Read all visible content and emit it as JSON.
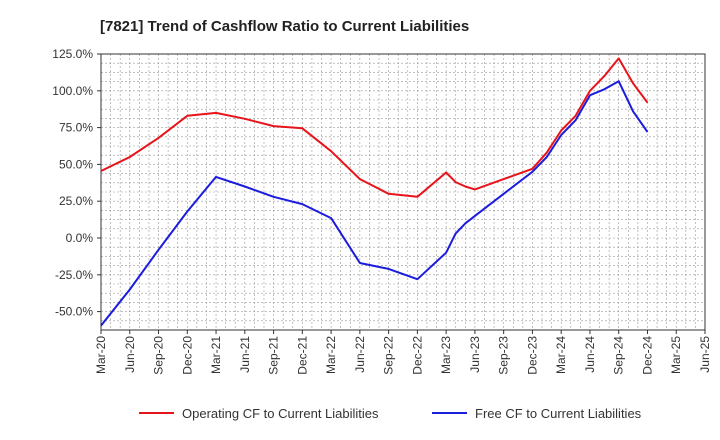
{
  "chart_data": {
    "type": "line",
    "title": "[7821]  Trend of Cashflow Ratio to Current Liabilities",
    "xlabel": "",
    "ylabel": "",
    "ylim": [
      -62.5,
      125.0
    ],
    "yticks": [
      125.0,
      100.0,
      75.0,
      50.0,
      25.0,
      0.0,
      -25.0,
      -50.0
    ],
    "ytick_labels": [
      "125.0%",
      "100.0%",
      "75.0%",
      "50.0%",
      "25.0%",
      "0.0%",
      "-25.0%",
      "-50.0%"
    ],
    "xtick_labels": [
      "Mar-20",
      "Jun-20",
      "Sep-20",
      "Dec-20",
      "Mar-21",
      "Jun-21",
      "Sep-21",
      "Dec-21",
      "Mar-22",
      "Jun-22",
      "Sep-22",
      "Dec-22",
      "Mar-23",
      "Jun-23",
      "Sep-23",
      "Dec-23",
      "Mar-24",
      "Jun-24",
      "Sep-24",
      "Dec-24",
      "Mar-25",
      "Jun-25"
    ],
    "grid": true,
    "legend_position": "bottom",
    "series": [
      {
        "name": "Operating CF to Current Liabilities",
        "color": "#e8141b",
        "points": [
          [
            0,
            45.5
          ],
          [
            1,
            55
          ],
          [
            2,
            68
          ],
          [
            3,
            83
          ],
          [
            4,
            85
          ],
          [
            5,
            81
          ],
          [
            6,
            76
          ],
          [
            7,
            74.5
          ],
          [
            8,
            59
          ],
          [
            9,
            40
          ],
          [
            10,
            30
          ],
          [
            11,
            28
          ],
          [
            12,
            44.5
          ],
          [
            12.33,
            38
          ],
          [
            12.67,
            35
          ],
          [
            13,
            33
          ],
          [
            14,
            40
          ],
          [
            15,
            47
          ],
          [
            15.5,
            58
          ],
          [
            16,
            73
          ],
          [
            16.5,
            83
          ],
          [
            17,
            100
          ],
          [
            17.5,
            110
          ],
          [
            18,
            122
          ],
          [
            18.5,
            105
          ],
          [
            19,
            92
          ]
        ]
      },
      {
        "name": "Free CF to Current Liabilities",
        "color": "#1c1cdc",
        "points": [
          [
            0,
            -59.5
          ],
          [
            1,
            -35
          ],
          [
            2,
            -8
          ],
          [
            3,
            18
          ],
          [
            4,
            41.5
          ],
          [
            5,
            35
          ],
          [
            6,
            28
          ],
          [
            7,
            23
          ],
          [
            8,
            13.5
          ],
          [
            9,
            -17
          ],
          [
            10,
            -21
          ],
          [
            11,
            -28
          ],
          [
            12,
            -10
          ],
          [
            12.33,
            3
          ],
          [
            12.67,
            10
          ],
          [
            13,
            15
          ],
          [
            14,
            30
          ],
          [
            15,
            45
          ],
          [
            15.5,
            55
          ],
          [
            16,
            70
          ],
          [
            16.5,
            80
          ],
          [
            17,
            97
          ],
          [
            17.5,
            101
          ],
          [
            18,
            106.5
          ],
          [
            18.5,
            86
          ],
          [
            19,
            72
          ]
        ]
      }
    ]
  }
}
